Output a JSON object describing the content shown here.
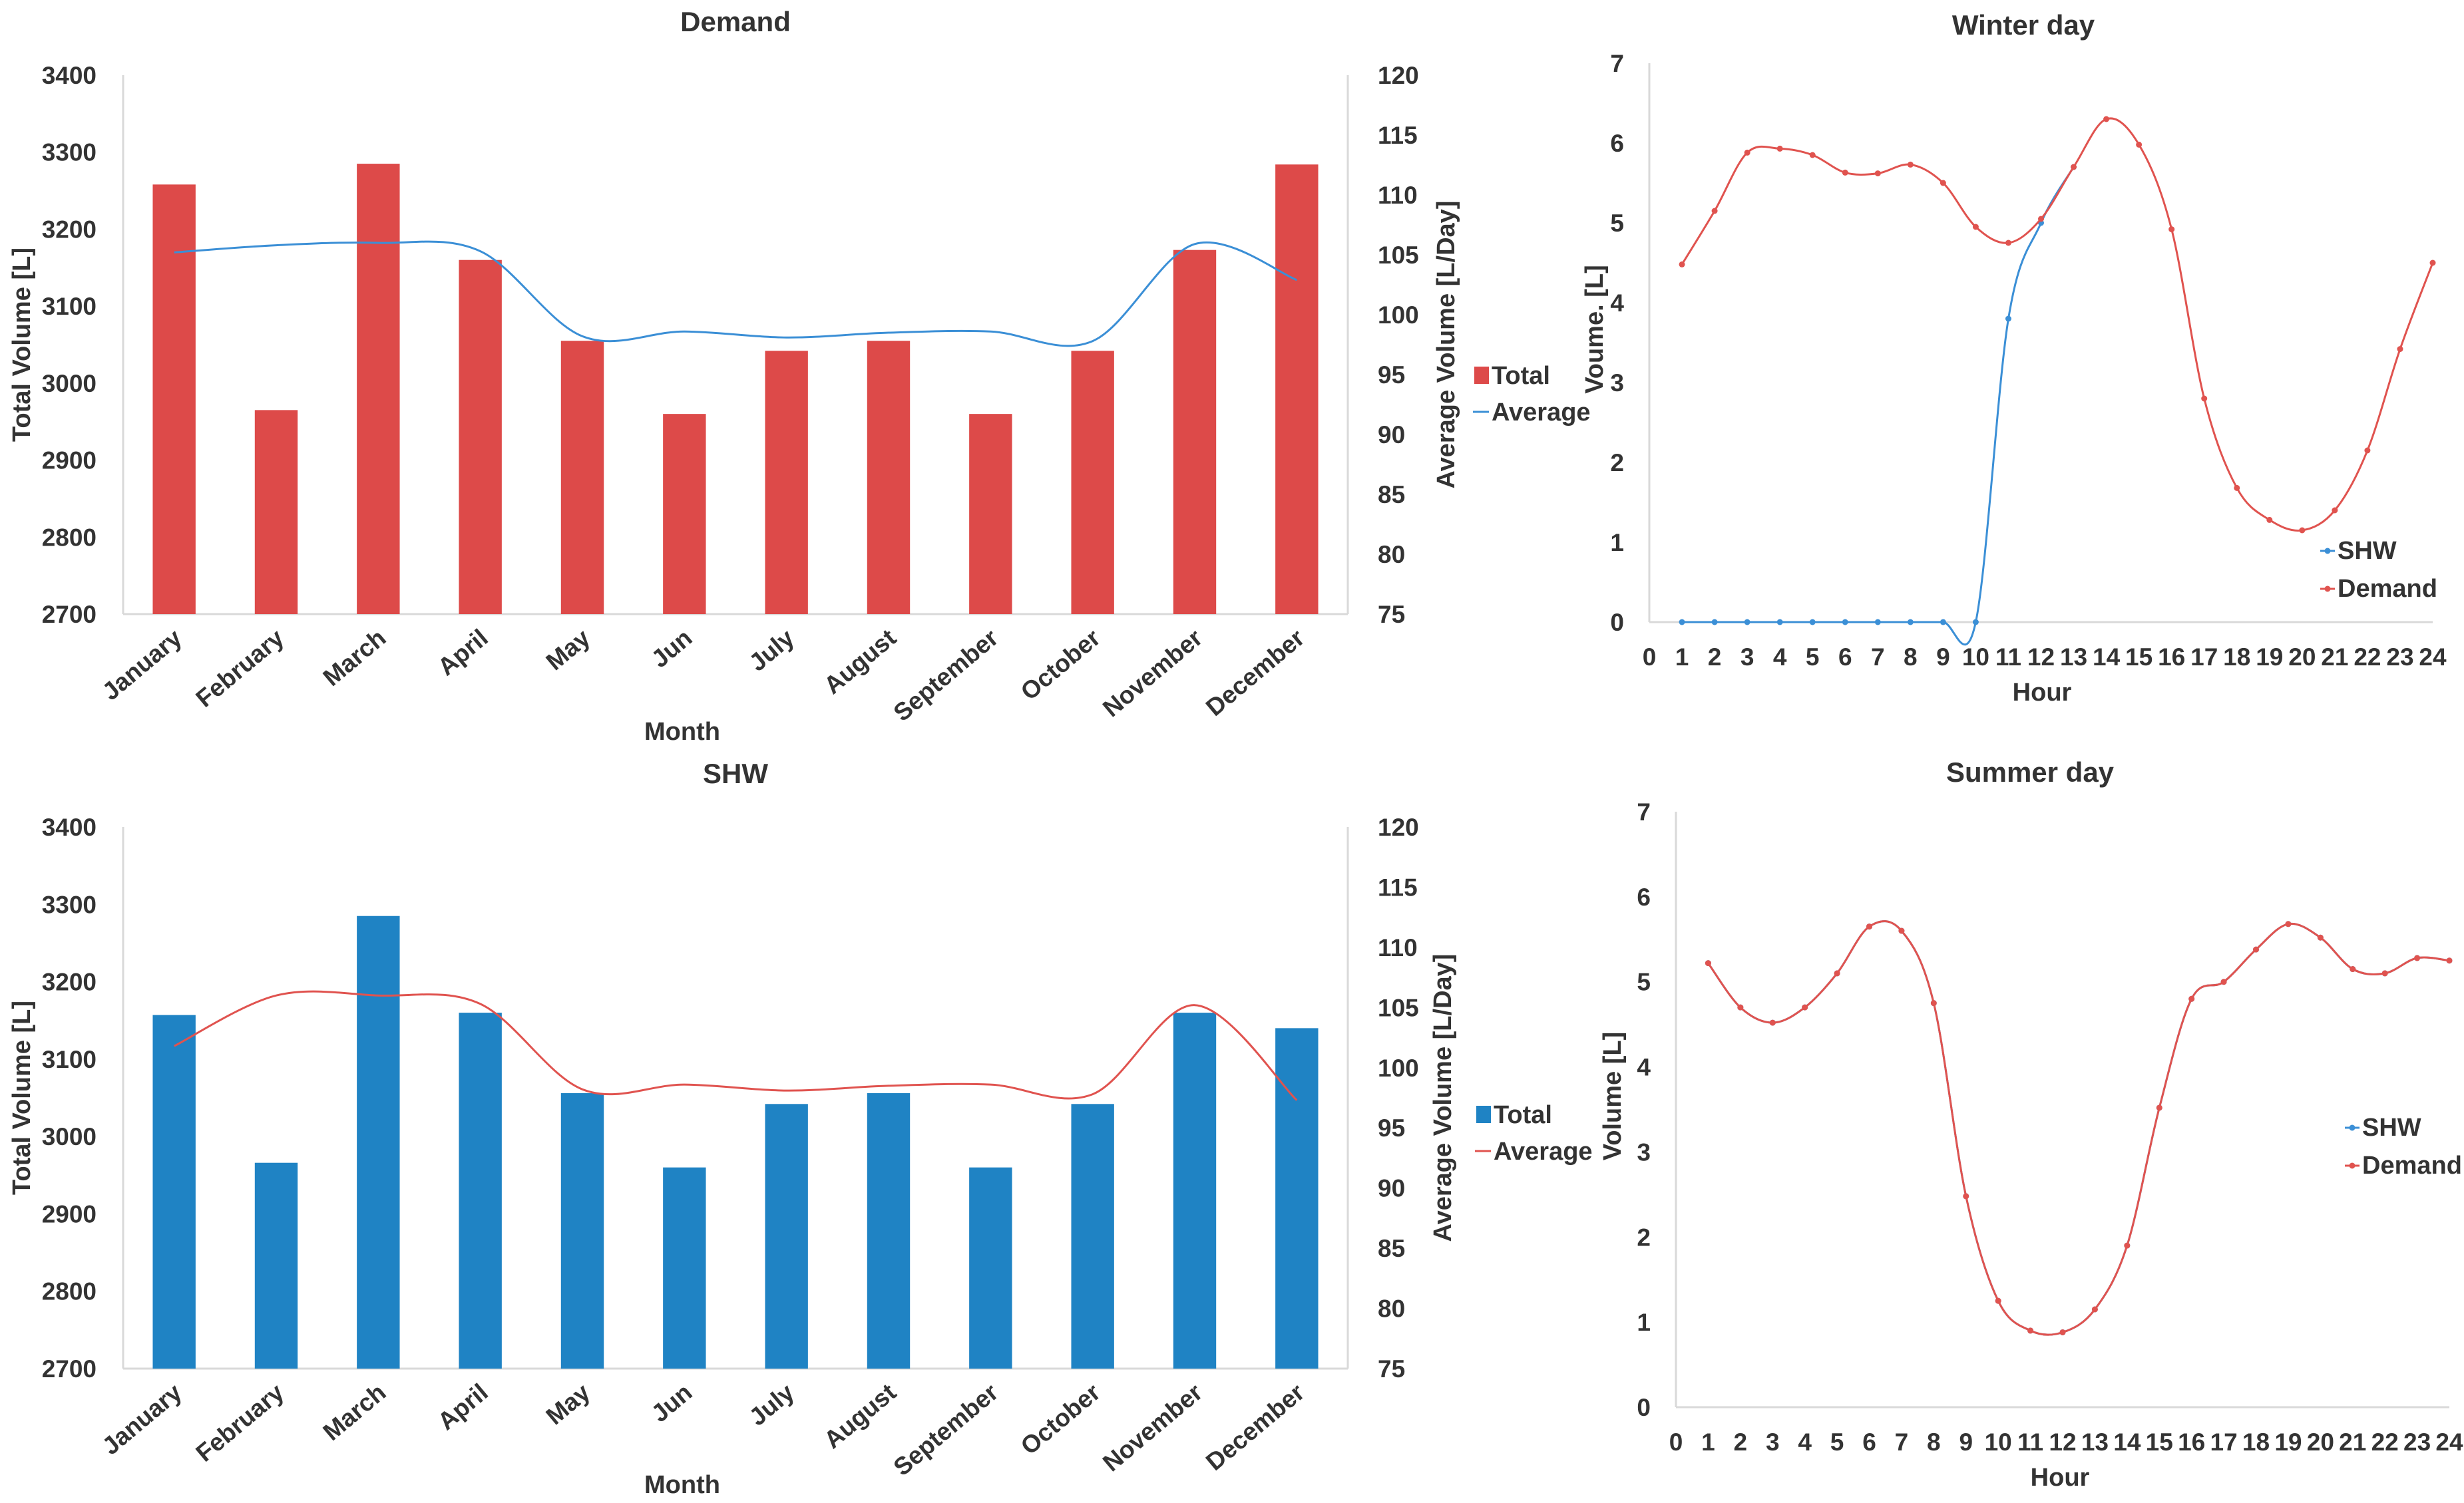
{
  "colors": {
    "demand_bar": "#dd4a49",
    "demand_line": "#3b8fd6",
    "shw_bar": "#1f83c4",
    "shw_line": "#e0534f",
    "axis": "#d9d9d9",
    "text": "#333333"
  },
  "chart_data": [
    {
      "id": "demand",
      "type": "bar",
      "title": "Demand",
      "xlabel": "Month",
      "ylabel": "Total Volume [L]",
      "y2label": "Average Volume [L/Day]",
      "categories": [
        "January",
        "February",
        "March",
        "April",
        "May",
        "Jun",
        "July",
        "August",
        "September",
        "October",
        "November",
        "December"
      ],
      "ylim": [
        2700,
        3400
      ],
      "yticks": [
        2700,
        2800,
        2900,
        3000,
        3100,
        3200,
        3300,
        3400
      ],
      "y2lim": [
        75,
        120
      ],
      "y2ticks": [
        75,
        80,
        85,
        90,
        95,
        100,
        105,
        110,
        115,
        120
      ],
      "series": [
        {
          "name": "Total",
          "kind": "bar",
          "axis": "left",
          "values": [
            3258,
            2965,
            3285,
            3160,
            3055,
            2960,
            3042,
            3055,
            2960,
            3042,
            3173,
            3284
          ]
        },
        {
          "name": "Average",
          "kind": "line",
          "axis": "right",
          "values": [
            105.2,
            105.8,
            106.0,
            105.3,
            98.2,
            98.6,
            98.1,
            98.5,
            98.6,
            97.8,
            105.9,
            102.9
          ]
        }
      ],
      "legend": [
        "Total",
        "Average"
      ],
      "legend_position": "right"
    },
    {
      "id": "shw",
      "type": "bar",
      "title": "SHW",
      "xlabel": "Month",
      "ylabel": "Total Volume [L]",
      "y2label": "Average Volume [L/Day]",
      "categories": [
        "January",
        "February",
        "March",
        "April",
        "May",
        "Jun",
        "July",
        "August",
        "September",
        "October",
        "November",
        "December"
      ],
      "ylim": [
        2700,
        3400
      ],
      "yticks": [
        2700,
        2800,
        2900,
        3000,
        3100,
        3200,
        3300,
        3400
      ],
      "y2lim": [
        75,
        120
      ],
      "y2ticks": [
        75,
        80,
        85,
        90,
        95,
        100,
        105,
        110,
        115,
        120
      ],
      "series": [
        {
          "name": "Total",
          "kind": "bar",
          "axis": "left",
          "values": [
            3157,
            2966,
            3285,
            3160,
            3056,
            2960,
            3042,
            3056,
            2960,
            3042,
            3160,
            3140
          ]
        },
        {
          "name": "Average",
          "kind": "line",
          "axis": "right",
          "values": [
            101.8,
            106.0,
            106.0,
            105.3,
            98.2,
            98.6,
            98.1,
            98.5,
            98.6,
            97.8,
            105.2,
            97.3
          ]
        }
      ],
      "legend": [
        "Total",
        "Average"
      ],
      "legend_position": "right"
    },
    {
      "id": "winter",
      "type": "line",
      "title": "Winter day",
      "xlabel": "Hour",
      "ylabel": "Voume. [L]",
      "x": [
        0,
        1,
        2,
        3,
        4,
        5,
        6,
        7,
        8,
        9,
        10,
        11,
        12,
        13,
        14,
        15,
        16,
        17,
        18,
        19,
        20,
        21,
        22,
        23,
        24
      ],
      "ylim": [
        0,
        7
      ],
      "yticks": [
        0,
        1,
        2,
        3,
        4,
        5,
        6,
        7
      ],
      "series": [
        {
          "name": "SHW",
          "x": [
            1,
            2,
            3,
            4,
            5,
            6,
            7,
            8,
            9,
            10,
            11,
            12,
            13
          ],
          "values": [
            0,
            0,
            0,
            0,
            0,
            0,
            0,
            0,
            0,
            0,
            3.8,
            5.0,
            5.7
          ]
        },
        {
          "name": "Demand",
          "x": [
            1,
            2,
            3,
            4,
            5,
            6,
            7,
            8,
            9,
            10,
            11,
            12,
            13,
            14,
            15,
            16,
            17,
            18,
            19,
            20,
            21,
            22,
            23,
            24
          ],
          "values": [
            4.48,
            5.15,
            5.88,
            5.93,
            5.85,
            5.63,
            5.62,
            5.73,
            5.5,
            4.95,
            4.75,
            5.05,
            5.7,
            6.3,
            5.98,
            4.92,
            2.8,
            1.68,
            1.28,
            1.15,
            1.4,
            2.15,
            3.42,
            4.5
          ]
        }
      ],
      "legend": [
        "SHW",
        "Demand"
      ],
      "legend_position": "bottom-right"
    },
    {
      "id": "summer",
      "type": "line",
      "title": "Summer day",
      "xlabel": "Hour",
      "ylabel": "Volume [L]",
      "x": [
        0,
        1,
        2,
        3,
        4,
        5,
        6,
        7,
        8,
        9,
        10,
        11,
        12,
        13,
        14,
        15,
        16,
        17,
        18,
        19,
        20,
        21,
        22,
        23,
        24
      ],
      "ylim": [
        0,
        7
      ],
      "yticks": [
        0,
        1,
        2,
        3,
        4,
        5,
        6,
        7
      ],
      "series": [
        {
          "name": "SHW",
          "x": [
            1,
            2,
            3,
            4,
            5,
            6,
            7,
            8,
            9,
            10,
            11,
            12,
            13,
            14,
            15,
            16,
            17,
            18,
            19,
            20,
            21,
            22,
            23,
            24
          ],
          "values": [
            5.22,
            4.7,
            4.52,
            4.7,
            5.1,
            5.65,
            5.6,
            4.75,
            2.48,
            1.25,
            0.9,
            0.88,
            1.15,
            1.9,
            3.52,
            4.8,
            5.0,
            5.38,
            5.68,
            5.52,
            5.15,
            5.1,
            5.28,
            5.25
          ]
        },
        {
          "name": "Demand",
          "x": [
            1,
            2,
            3,
            4,
            5,
            6,
            7,
            8,
            9,
            10,
            11,
            12,
            13,
            14,
            15,
            16,
            17,
            18,
            19,
            20,
            21,
            22,
            23,
            24
          ],
          "values": [
            5.22,
            4.7,
            4.52,
            4.7,
            5.1,
            5.65,
            5.6,
            4.75,
            2.48,
            1.25,
            0.9,
            0.88,
            1.15,
            1.9,
            3.52,
            4.8,
            5.0,
            5.38,
            5.68,
            5.52,
            5.15,
            5.1,
            5.28,
            5.25
          ]
        }
      ],
      "legend": [
        "SHW",
        "Demand"
      ],
      "legend_position": "right"
    }
  ]
}
